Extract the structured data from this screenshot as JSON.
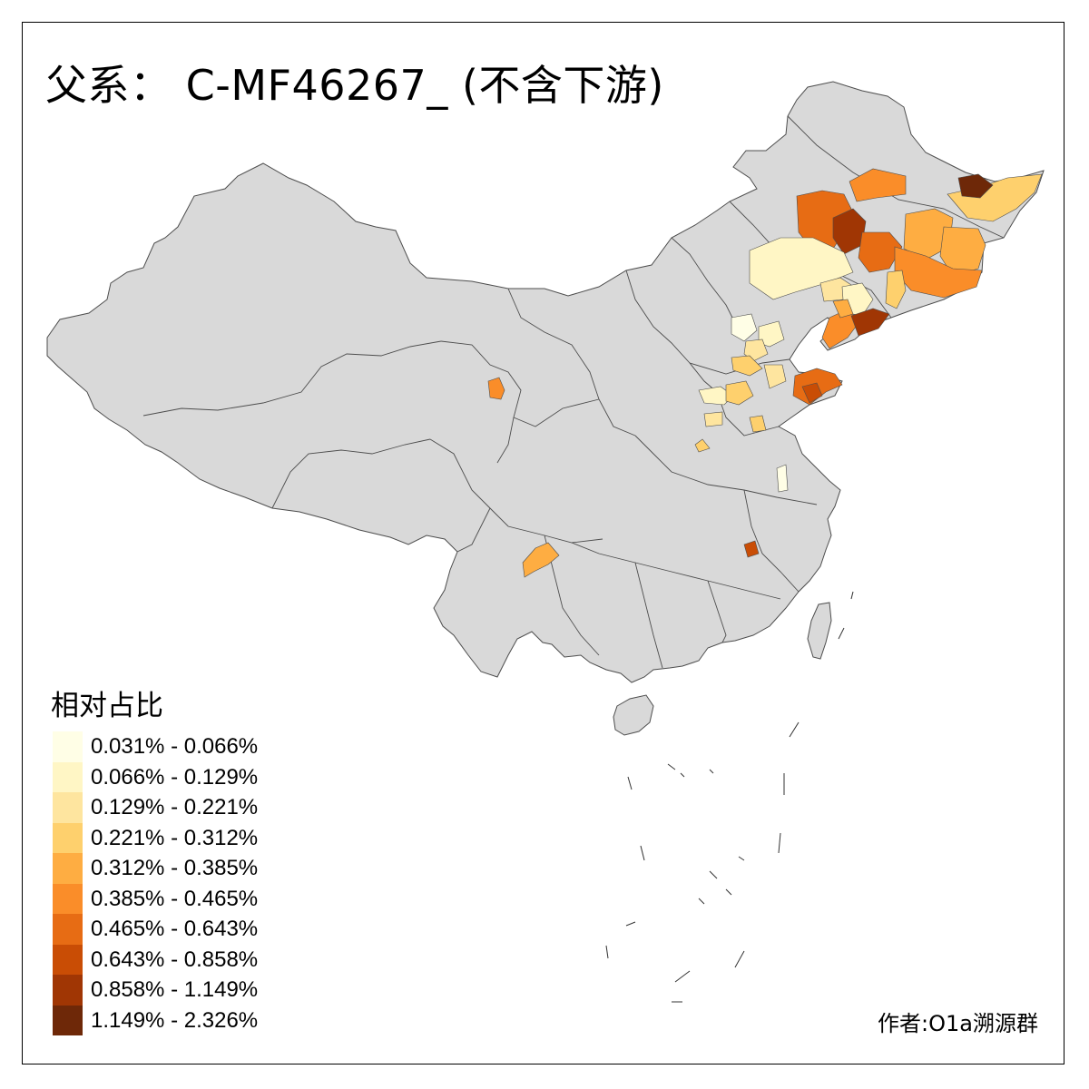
{
  "title": "父系： C-MF46267_ (不含下游)",
  "legend": {
    "title": "相对占比",
    "classes": [
      {
        "label": "0.031% - 0.066%",
        "color": "#FFFEE6"
      },
      {
        "label": "0.066% - 0.129%",
        "color": "#FFF6C5"
      },
      {
        "label": "0.129% - 0.221%",
        "color": "#FEE59F"
      },
      {
        "label": "0.221% - 0.312%",
        "color": "#FED06D"
      },
      {
        "label": "0.312% - 0.385%",
        "color": "#FEAD42"
      },
      {
        "label": "0.385% - 0.465%",
        "color": "#FA8D29"
      },
      {
        "label": "0.465% - 0.643%",
        "color": "#E76C14"
      },
      {
        "label": "0.643% - 0.858%",
        "color": "#C94D05"
      },
      {
        "label": "0.858% - 1.149%",
        "color": "#A03604"
      },
      {
        "label": "1.149% - 2.326%",
        "color": "#6E2808"
      }
    ]
  },
  "author": "作者:O1a溯源群",
  "colors": {
    "land": "#D9D9D9",
    "border": "#4D4D4D",
    "frame": "#000000"
  }
}
